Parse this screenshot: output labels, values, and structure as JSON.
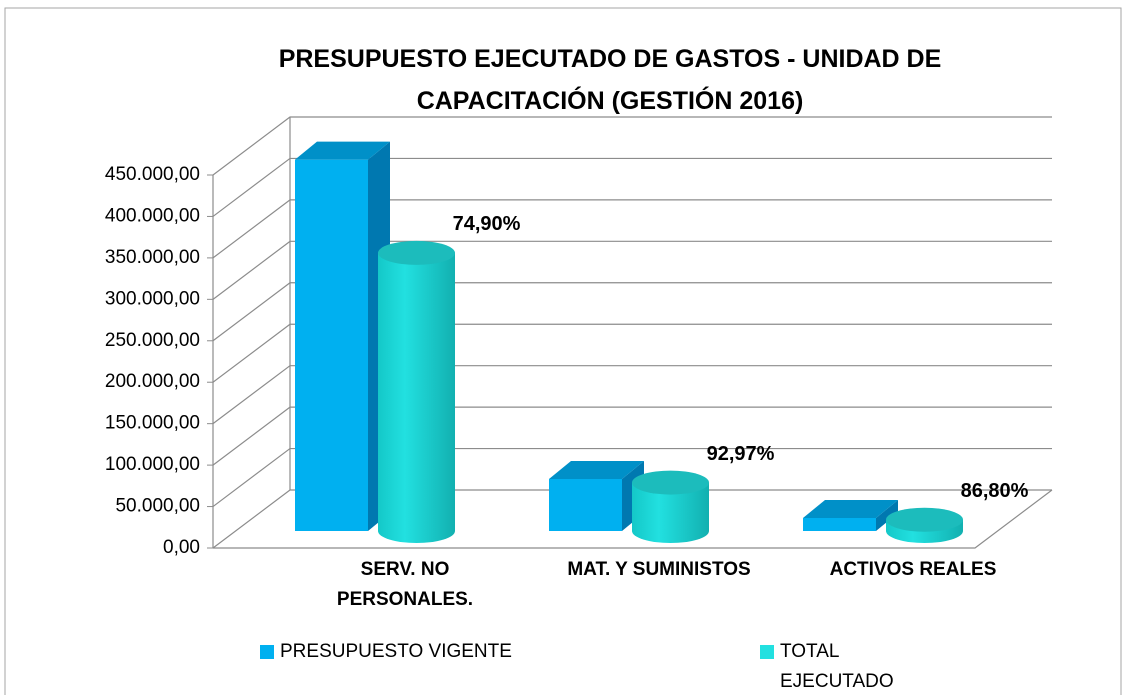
{
  "chart_data": {
    "type": "bar3d",
    "title": "PRESUPUESTO EJECUTADO DE GASTOS -  UNIDAD DE CAPACITACIÓN (GESTIÓN 2016)",
    "categories": [
      "SERV. NO PERSONALES.",
      "MAT. Y SUMINISTOS",
      "ACTIVOS REALES"
    ],
    "series": [
      {
        "name": "PRESUPUESTO VIGENTE",
        "color": "#00b0f0",
        "values": [
          448000,
          62800,
          15700
        ]
      },
      {
        "name": "TOTAL EJECUTADO",
        "color": "#22e0e0",
        "values": [
          335500,
          58400,
          13600
        ]
      }
    ],
    "annotations": [
      "74,90%",
      "92,97%",
      "86,80%"
    ],
    "ylim": [
      0,
      450000
    ],
    "yticks": [
      {
        "value": 0,
        "label": "0,00"
      },
      {
        "value": 50000,
        "label": "50.000,00"
      },
      {
        "value": 100000,
        "label": "100.000,00"
      },
      {
        "value": 150000,
        "label": "150.000,00"
      },
      {
        "value": 200000,
        "label": "200.000,00"
      },
      {
        "value": 250000,
        "label": "250.000,00"
      },
      {
        "value": 300000,
        "label": "300.000,00"
      },
      {
        "value": 350000,
        "label": "350.000,00"
      },
      {
        "value": 400000,
        "label": "400.000,00"
      },
      {
        "value": 450000,
        "label": "450.000,00"
      }
    ],
    "grid": true,
    "legend": "bottom"
  }
}
